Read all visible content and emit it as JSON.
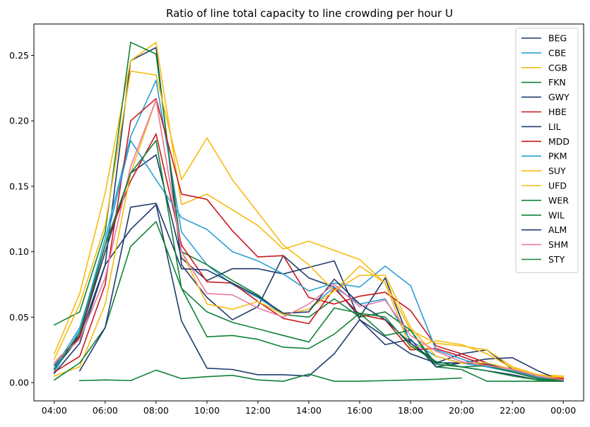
{
  "chart_data": {
    "type": "line",
    "title": "Ratio of line total capacity to line crowding per hour U",
    "xlabel": "",
    "ylabel": "",
    "x": [
      "04:00",
      "05:00",
      "06:00",
      "07:00",
      "08:00",
      "09:00",
      "10:00",
      "11:00",
      "12:00",
      "13:00",
      "14:00",
      "15:00",
      "16:00",
      "17:00",
      "18:00",
      "19:00",
      "20:00",
      "21:00",
      "22:00",
      "23:00",
      "00:00"
    ],
    "x_tick_labels": [
      "04:00",
      "06:00",
      "08:00",
      "10:00",
      "12:00",
      "14:00",
      "16:00",
      "18:00",
      "20:00",
      "22:00",
      "00:00"
    ],
    "y_ticks": [
      "0.00",
      "0.05",
      "0.10",
      "0.15",
      "0.20",
      "0.25"
    ],
    "ylim": [
      -0.014,
      0.274
    ],
    "xlim": [
      -0.8,
      20.8
    ],
    "legend_position": "top-right",
    "series": [
      {
        "name": "BEG",
        "color": "#1f3a6e",
        "values": [
          0.01,
          0.035,
          0.09,
          0.246,
          0.256,
          0.09,
          0.065,
          0.048,
          0.058,
          0.097,
          0.08,
          0.073,
          0.05,
          0.08,
          0.03,
          0.015,
          0.022,
          0.025,
          0.01,
          0.003,
          0.001
        ]
      },
      {
        "name": "CBE",
        "color": "#2b9fd3",
        "values": [
          0.008,
          0.04,
          0.11,
          0.188,
          0.231,
          0.115,
          0.09,
          0.075,
          0.065,
          0.052,
          0.056,
          0.073,
          0.06,
          0.064,
          0.032,
          0.02,
          0.015,
          0.012,
          0.008,
          0.004,
          0.002
        ]
      },
      {
        "name": "CGB",
        "color": "#f7bb10",
        "values": [
          0.022,
          0.068,
          0.145,
          0.246,
          0.26,
          0.136,
          0.144,
          0.132,
          0.12,
          0.102,
          0.108,
          0.101,
          0.094,
          0.076,
          0.04,
          0.03,
          0.028,
          0.025,
          0.012,
          0.006,
          0.005
        ]
      },
      {
        "name": "FKN",
        "color": "#108236",
        "values": [
          0.044,
          0.054,
          0.115,
          0.26,
          0.251,
          0.1,
          0.09,
          0.078,
          0.067,
          0.052,
          0.05,
          0.064,
          0.05,
          0.054,
          0.04,
          0.012,
          0.01,
          0.001,
          0.001,
          0.001,
          0.001
        ]
      },
      {
        "name": "GWY",
        "color": "#1f3a6e",
        "values": [
          0.007,
          0.03,
          0.09,
          0.117,
          0.136,
          0.047,
          0.011,
          0.01,
          0.006,
          0.006,
          0.005,
          0.022,
          0.048,
          0.029,
          0.033,
          0.012,
          0.015,
          0.018,
          0.019,
          0.009,
          0.001
        ]
      },
      {
        "name": "HBE",
        "color": "#c9171f",
        "values": [
          0.008,
          0.02,
          0.075,
          0.2,
          0.217,
          0.144,
          0.14,
          0.116,
          0.096,
          0.097,
          0.065,
          0.06,
          0.066,
          0.069,
          0.055,
          0.028,
          0.022,
          0.015,
          0.01,
          0.005,
          0.003
        ]
      },
      {
        "name": "LIL",
        "color": "#1f3a6e",
        "values": [
          0.013,
          0.036,
          0.1,
          0.16,
          0.174,
          0.095,
          0.078,
          0.087,
          0.087,
          0.083,
          0.088,
          0.093,
          0.048,
          0.035,
          0.022,
          0.015,
          0.015,
          0.014,
          0.01,
          0.004,
          0.002
        ]
      },
      {
        "name": "MDD",
        "color": "#c9171f",
        "values": [
          0.015,
          0.035,
          0.105,
          0.154,
          0.19,
          0.105,
          0.077,
          0.076,
          0.062,
          0.049,
          0.045,
          0.072,
          0.052,
          0.048,
          0.025,
          0.026,
          0.02,
          0.013,
          0.008,
          0.004,
          0.003
        ]
      },
      {
        "name": "PKM",
        "color": "#2b9fd3",
        "values": [
          0.011,
          0.042,
          0.105,
          0.185,
          0.155,
          0.126,
          0.117,
          0.1,
          0.093,
          0.083,
          0.07,
          0.076,
          0.073,
          0.089,
          0.074,
          0.025,
          0.018,
          0.012,
          0.009,
          0.004,
          0.002
        ]
      },
      {
        "name": "SUY",
        "color": "#f7bb10",
        "values": [
          0.018,
          0.06,
          0.12,
          0.238,
          0.235,
          0.155,
          0.187,
          0.155,
          0.13,
          0.105,
          0.09,
          0.07,
          0.082,
          0.082,
          0.042,
          0.02,
          0.015,
          0.015,
          0.01,
          0.005,
          0.004
        ]
      },
      {
        "name": "UFD",
        "color": "#f7bb10",
        "values": [
          0.005,
          0.012,
          0.06,
          0.16,
          0.216,
          0.1,
          0.06,
          0.056,
          0.062,
          0.052,
          0.056,
          0.07,
          0.089,
          0.076,
          0.026,
          0.032,
          0.029,
          0.022,
          0.011,
          0.005,
          0.004
        ]
      },
      {
        "name": "WER",
        "color": "#108236",
        "values": [
          null,
          0.0015,
          0.002,
          0.0015,
          0.0095,
          0.003,
          0.0045,
          0.0055,
          0.002,
          0.001,
          0.0065,
          0.001,
          0.001,
          0.0015,
          0.002,
          0.0025,
          0.0035,
          null,
          null,
          null,
          null
        ]
      },
      {
        "name": "WIL",
        "color": "#108236",
        "values": [
          0.002,
          0.015,
          0.042,
          0.104,
          0.123,
          0.072,
          0.054,
          0.046,
          0.041,
          0.036,
          0.031,
          0.057,
          0.053,
          0.036,
          0.04,
          0.014,
          0.012,
          0.013,
          0.008,
          0.003,
          0.002
        ]
      },
      {
        "name": "ALM",
        "color": "#1f3a6e",
        "values": [
          null,
          0.009,
          0.042,
          0.134,
          0.137,
          0.087,
          0.086,
          0.076,
          0.066,
          0.053,
          0.054,
          0.079,
          0.06,
          0.048,
          0.03,
          0.016,
          0.012,
          0.009,
          0.006,
          0.002,
          0.001
        ]
      },
      {
        "name": "SHM",
        "color": "#e87ba4",
        "values": [
          0.015,
          0.033,
          0.08,
          0.165,
          0.216,
          0.1,
          0.068,
          0.067,
          0.057,
          0.05,
          0.06,
          0.075,
          0.058,
          0.063,
          0.036,
          0.024,
          0.016,
          0.013,
          0.01,
          0.005,
          0.002
        ]
      },
      {
        "name": "STY",
        "color": "#108236",
        "values": [
          0.01,
          0.038,
          0.105,
          0.16,
          0.185,
          0.072,
          0.035,
          0.036,
          0.033,
          0.027,
          0.026,
          0.037,
          0.053,
          0.05,
          0.028,
          0.016,
          0.012,
          0.009,
          0.005,
          0.002,
          0.001
        ]
      }
    ]
  }
}
